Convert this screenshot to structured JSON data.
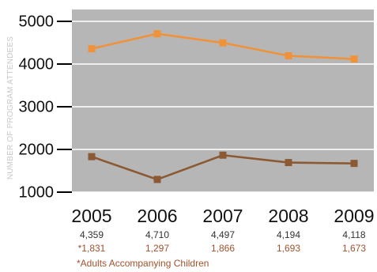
{
  "chart_data": {
    "type": "line",
    "ylabel": "NUMBER OF PROGRAM ATTENDEES",
    "xlabel": "",
    "categories": [
      "2005",
      "2006",
      "2007",
      "2008",
      "2009"
    ],
    "ylim": [
      1000,
      5000
    ],
    "yticks": [
      1000,
      2000,
      3000,
      4000,
      5000
    ],
    "grid": true,
    "series": [
      {
        "values": [
          4359,
          4710,
          4497,
          4194,
          4118
        ],
        "labels": [
          "4,359",
          "4,710",
          "4,497",
          "4,194",
          "4,118"
        ],
        "color": "#f0923a"
      },
      {
        "values": [
          1831,
          1297,
          1866,
          1693,
          1673
        ],
        "labels": [
          "*1,831",
          "1,297",
          "1,866",
          "1,693",
          "1,673"
        ],
        "color": "#8b5a34"
      }
    ],
    "footnote": "*Adults Accompanying Children",
    "colors": {
      "plot_background": "#b6b6b6",
      "gridline": "#ffffff",
      "footnote": "#a0522d",
      "value_label_primary": "#333333",
      "value_label_secondary": "#a0522d"
    }
  }
}
